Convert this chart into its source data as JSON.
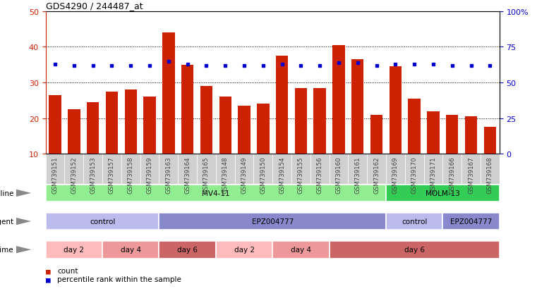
{
  "title": "GDS4290 / 244487_at",
  "samples": [
    "GSM739151",
    "GSM739152",
    "GSM739153",
    "GSM739157",
    "GSM739158",
    "GSM739159",
    "GSM739163",
    "GSM739164",
    "GSM739165",
    "GSM739148",
    "GSM739149",
    "GSM739150",
    "GSM739154",
    "GSM739155",
    "GSM739156",
    "GSM739160",
    "GSM739161",
    "GSM739162",
    "GSM739169",
    "GSM739170",
    "GSM739171",
    "GSM739166",
    "GSM739167",
    "GSM739168"
  ],
  "counts": [
    26.5,
    22.5,
    24.5,
    27.5,
    28.0,
    26.0,
    44.0,
    35.0,
    29.0,
    26.0,
    23.5,
    24.0,
    37.5,
    28.5,
    28.5,
    40.5,
    36.5,
    21.0,
    34.5,
    25.5,
    22.0,
    21.0,
    20.5,
    17.5
  ],
  "percentile_ranks": [
    63,
    62,
    62,
    62,
    62,
    62,
    65,
    63,
    62,
    62,
    62,
    62,
    63,
    62,
    62,
    64,
    64,
    62,
    63,
    63,
    63,
    62,
    62,
    62
  ],
  "bar_color": "#cc2200",
  "dot_color": "#0000cc",
  "background_color": "#ffffff",
  "ylim_left": [
    10,
    50
  ],
  "yticks_left": [
    10,
    20,
    30,
    40,
    50
  ],
  "ylim_right": [
    0,
    100
  ],
  "yticks_right": [
    0,
    25,
    50,
    75,
    100
  ],
  "grid_lines": [
    20,
    30,
    40
  ],
  "cell_line_groups": [
    {
      "label": "MV4-11",
      "start": 0,
      "end": 18,
      "color": "#90ee90"
    },
    {
      "label": "MOLM-13",
      "start": 18,
      "end": 24,
      "color": "#33cc55"
    }
  ],
  "agent_groups": [
    {
      "label": "control",
      "start": 0,
      "end": 6,
      "color": "#bbbbee"
    },
    {
      "label": "EPZ004777",
      "start": 6,
      "end": 18,
      "color": "#8888cc"
    },
    {
      "label": "control",
      "start": 18,
      "end": 21,
      "color": "#bbbbee"
    },
    {
      "label": "EPZ004777",
      "start": 21,
      "end": 24,
      "color": "#8888cc"
    }
  ],
  "time_groups": [
    {
      "label": "day 2",
      "start": 0,
      "end": 3,
      "color": "#ffbbbb"
    },
    {
      "label": "day 4",
      "start": 3,
      "end": 6,
      "color": "#ee9999"
    },
    {
      "label": "day 6",
      "start": 6,
      "end": 9,
      "color": "#cc6666"
    },
    {
      "label": "day 2",
      "start": 9,
      "end": 12,
      "color": "#ffbbbb"
    },
    {
      "label": "day 4",
      "start": 12,
      "end": 15,
      "color": "#ee9999"
    },
    {
      "label": "day 6",
      "start": 15,
      "end": 24,
      "color": "#cc6666"
    }
  ],
  "legend_count_color": "#cc2200",
  "legend_pct_color": "#0000cc",
  "left_axis_color": "#cc2200",
  "right_axis_color": "#0000cc",
  "row_label_color": "#444444"
}
